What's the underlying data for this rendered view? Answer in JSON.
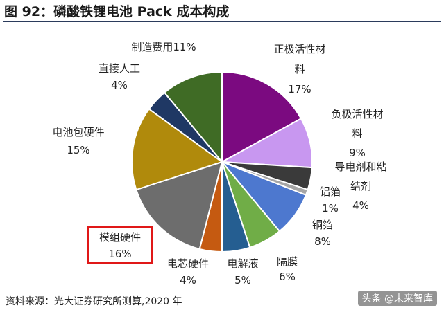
{
  "header": {
    "title": "图 92：磷酸铁锂电池 Pack 成本构成"
  },
  "footer": {
    "source": "资料来源：光大证券研究所测算,2020 年",
    "watermark": "头条 @未来智库"
  },
  "chart_data": {
    "type": "pie",
    "title": "图 92：磷酸铁锂电池 Pack 成本构成",
    "highlighted_slice": "模组硬件",
    "colors": {
      "正极活性材料": "#7b0a80",
      "负极活性材料": "#c897f0",
      "导电剂和粘结剂": "#3a3a3a",
      "铝箔": "#a6a6a6",
      "铜箔": "#4d78cf",
      "隔膜": "#70ad47",
      "电解液": "#255e91",
      "电芯硬件": "#c55a11",
      "模组硬件": "#6d6d6d",
      "电池包硬件": "#b08a0c",
      "直接人工": "#1f3864",
      "制造费用": "#3f6b25",
      "highlight_box": "#e01818"
    },
    "slices": [
      {
        "name": "正极活性材料",
        "value": 17,
        "label_lines": [
          "正极活性材",
          "料",
          "17%"
        ]
      },
      {
        "name": "负极活性材料",
        "value": 9,
        "label_lines": [
          "负极活性材",
          "料",
          "9%"
        ]
      },
      {
        "name": "导电剂和粘结剂",
        "value": 4,
        "label_lines": [
          "导电剂和粘",
          "结剂",
          "4%"
        ]
      },
      {
        "name": "铝箔",
        "value": 1,
        "label_lines": [
          "铝箔",
          "1%"
        ]
      },
      {
        "name": "铜箔",
        "value": 8,
        "label_lines": [
          "铜箔",
          "8%"
        ]
      },
      {
        "name": "隔膜",
        "value": 6,
        "label_lines": [
          "隔膜",
          "6%"
        ]
      },
      {
        "name": "电解液",
        "value": 5,
        "label_lines": [
          "电解液",
          "5%"
        ]
      },
      {
        "name": "电芯硬件",
        "value": 4,
        "label_lines": [
          "电芯硬件",
          "4%"
        ]
      },
      {
        "name": "模组硬件",
        "value": 16,
        "label_lines": [
          "模组硬件",
          "16%"
        ]
      },
      {
        "name": "电池包硬件",
        "value": 15,
        "label_lines": [
          "电池包硬件",
          "15%"
        ]
      },
      {
        "name": "直接人工",
        "value": 4,
        "label_lines": [
          "直接人工",
          "4%"
        ]
      },
      {
        "name": "制造费用",
        "value": 11,
        "label_lines": [
          "制造费用11%"
        ]
      }
    ]
  }
}
